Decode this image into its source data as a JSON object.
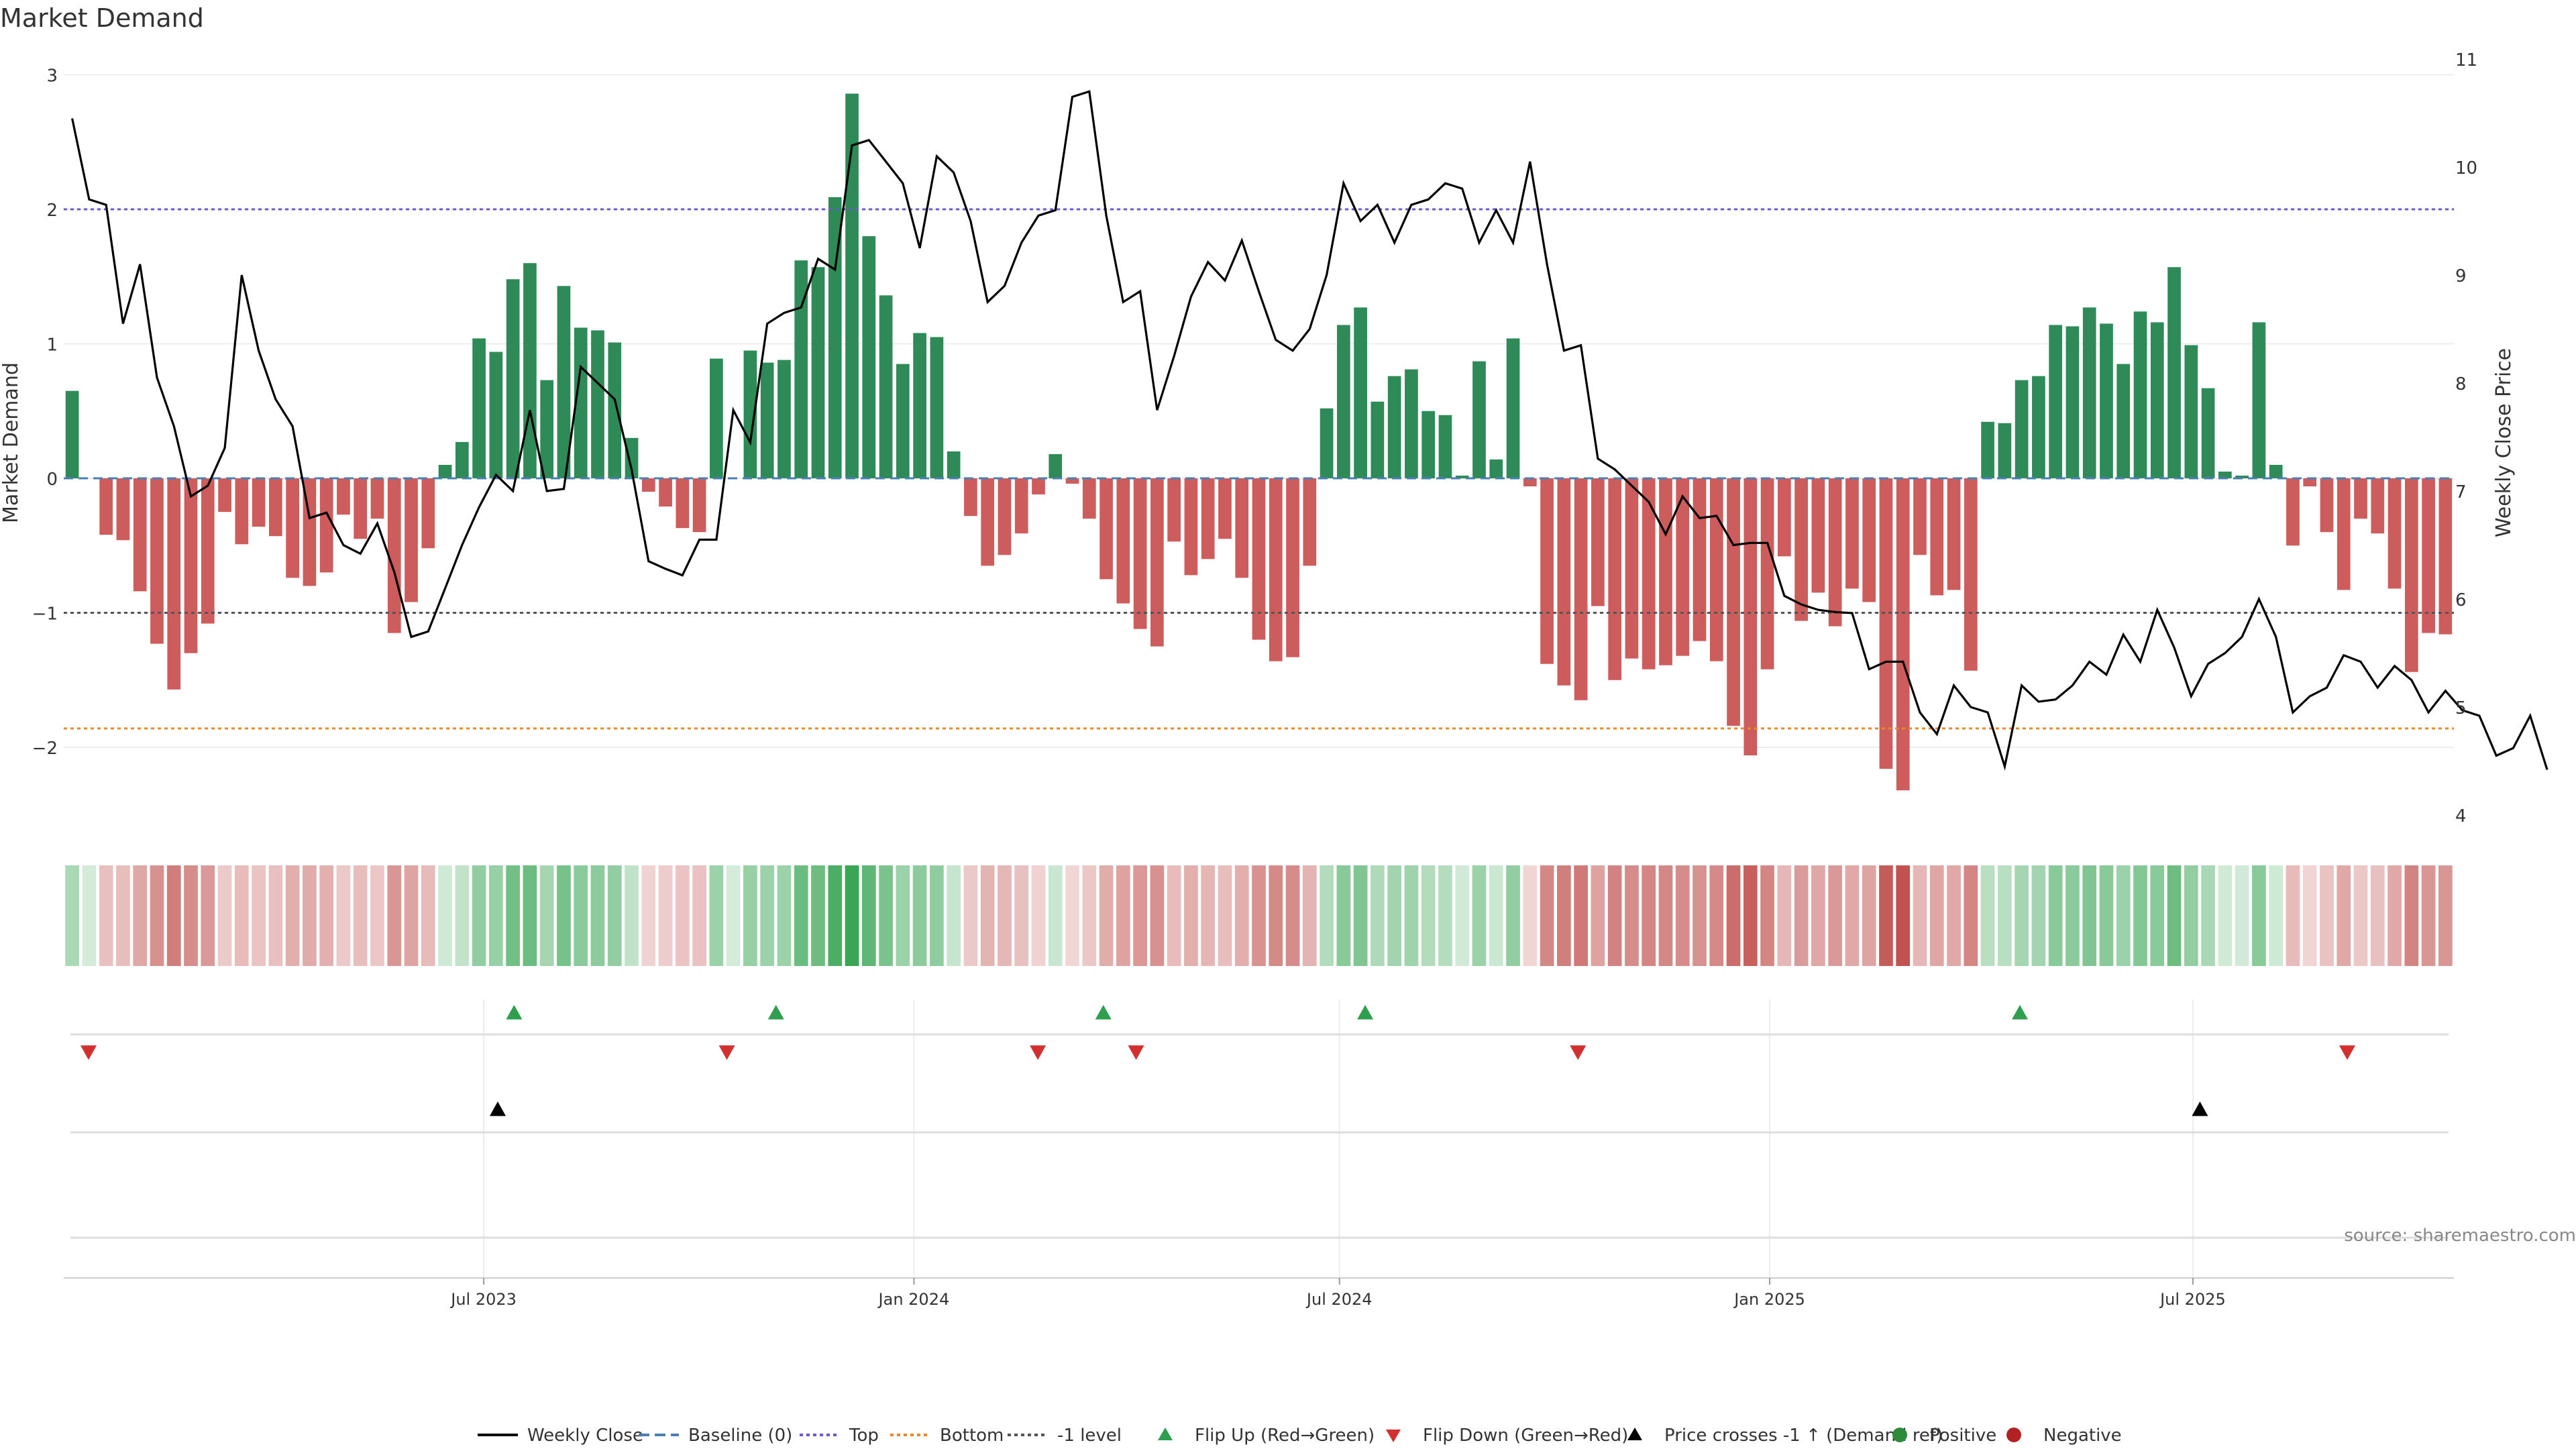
{
  "chart_data": {
    "type": "bar",
    "title": "Market Demand",
    "ylabel": "Market Demand",
    "y2label": "Weekly Close Price",
    "ylim": [
      -2.6,
      3.0
    ],
    "y2lim": [
      4.0,
      11.0
    ],
    "yticks": [
      3,
      2,
      1,
      0,
      -1,
      -2
    ],
    "ytick_labels": [
      "3",
      "2",
      "1",
      "0",
      "−1",
      "−2"
    ],
    "y2ticks": [
      11,
      10,
      9,
      8,
      7,
      6,
      5,
      4
    ],
    "y2tick_labels": [
      "11",
      "10",
      "9",
      "8",
      "7",
      "6",
      "5",
      "4"
    ],
    "x_start": "2023-01-06",
    "x_end": "2025-10-17",
    "xticks": [
      {
        "date": "2023-07-01",
        "label": "Jul 2023"
      },
      {
        "date": "2024-01-01",
        "label": "Jan 2024"
      },
      {
        "date": "2024-07-01",
        "label": "Jul 2024"
      },
      {
        "date": "2025-01-01",
        "label": "Jan 2025"
      },
      {
        "date": "2025-07-01",
        "label": "Jul 2025"
      }
    ],
    "levels": {
      "top": 2.0,
      "bottom": -1.86,
      "minus_one": -1.0,
      "baseline": 0
    },
    "demand": [
      0.65,
      0,
      -0.42,
      -0.46,
      -0.84,
      -1.23,
      -1.57,
      -1.3,
      -1.08,
      -0.25,
      -0.49,
      -0.36,
      -0.43,
      -0.74,
      -0.8,
      -0.7,
      -0.27,
      -0.45,
      -0.3,
      -1.15,
      -0.92,
      -0.52,
      0.1,
      0.27,
      1.04,
      0.94,
      1.48,
      1.6,
      0.73,
      1.43,
      1.12,
      1.1,
      1.01,
      0.3,
      -0.1,
      -0.21,
      -0.37,
      -0.4,
      0.89,
      0.0,
      0.95,
      0.86,
      0.88,
      1.62,
      1.57,
      2.09,
      2.86,
      1.8,
      1.36,
      0.85,
      1.08,
      1.05,
      0.2,
      -0.28,
      -0.65,
      -0.57,
      -0.41,
      -0.12,
      0.18,
      -0.04,
      -0.3,
      -0.75,
      -0.93,
      -1.12,
      -1.25,
      -0.47,
      -0.72,
      -0.6,
      -0.45,
      -0.74,
      -1.2,
      -1.36,
      -1.33,
      -0.65,
      0.52,
      1.14,
      1.27,
      0.57,
      0.76,
      0.81,
      0.5,
      0.47,
      0.02,
      0.87,
      0.14,
      1.04,
      -0.06,
      -1.38,
      -1.54,
      -1.65,
      -0.95,
      -1.5,
      -1.34,
      -1.42,
      -1.39,
      -1.32,
      -1.21,
      -1.36,
      -1.84,
      -2.06,
      -1.42,
      -0.58,
      -1.06,
      -0.85,
      -1.1,
      -0.82,
      -0.92,
      -2.16,
      -2.32,
      -0.57,
      -0.87,
      -0.83,
      -1.43,
      0.42,
      0.41,
      0.73,
      0.76,
      1.14,
      1.13,
      1.27,
      1.15,
      0.85,
      1.24,
      1.16,
      1.57,
      0.99,
      0.67,
      0.05,
      0.02,
      1.16,
      0.1,
      -0.5,
      -0.06,
      -0.4,
      -0.83,
      -0.3,
      -0.41,
      -0.82,
      -1.44,
      -1.15,
      -1.16
    ],
    "close": [
      10.45,
      9.7,
      9.65,
      8.55,
      9.1,
      8.05,
      7.6,
      6.95,
      7.05,
      7.4,
      9.0,
      8.3,
      7.85,
      7.6,
      6.75,
      6.8,
      6.5,
      6.42,
      6.7,
      6.25,
      5.65,
      5.7,
      6.1,
      6.5,
      6.85,
      7.15,
      7.0,
      7.75,
      7.0,
      7.02,
      8.15,
      8.0,
      7.85,
      7.2,
      6.35,
      6.28,
      6.22,
      6.55,
      6.55,
      7.75,
      7.45,
      8.55,
      8.65,
      8.7,
      9.15,
      9.05,
      10.2,
      10.25,
      10.05,
      9.85,
      9.25,
      10.1,
      9.95,
      9.5,
      8.75,
      8.9,
      9.3,
      9.55,
      9.6,
      10.65,
      10.7,
      9.55,
      8.75,
      8.85,
      7.75,
      8.25,
      8.8,
      9.12,
      8.95,
      9.32,
      8.85,
      8.4,
      8.3,
      8.5,
      9.0,
      9.85,
      9.5,
      9.65,
      9.3,
      9.65,
      9.7,
      9.85,
      9.8,
      9.3,
      9.6,
      9.3,
      10.05,
      9.1,
      8.3,
      8.35,
      7.3,
      7.2,
      7.05,
      6.9,
      6.6,
      6.95,
      6.75,
      6.77,
      6.5,
      6.52,
      6.52,
      6.03,
      5.95,
      5.9,
      5.88,
      5.87,
      5.35,
      5.42,
      5.42,
      4.95,
      4.75,
      5.2,
      5.0,
      4.95,
      4.45,
      5.2,
      5.05,
      5.07,
      5.2,
      5.42,
      5.3,
      5.67,
      5.42,
      5.9,
      5.55,
      5.1,
      5.4,
      5.5,
      5.65,
      6.0,
      5.65,
      4.95,
      5.1,
      5.18,
      5.48,
      5.42,
      5.18,
      5.38,
      5.25,
      4.95,
      5.15,
      4.97,
      4.92,
      4.55,
      4.62,
      4.92,
      4.42
    ],
    "flip_up": [
      "2023-07-14",
      "2023-11-03",
      "2024-03-22",
      "2024-07-12",
      "2025-04-18"
    ],
    "flip_down": [
      "2023-01-13",
      "2023-10-13",
      "2024-02-23",
      "2024-04-05",
      "2024-10-11",
      "2025-09-05"
    ],
    "price_cross": [
      "2023-07-07",
      "2025-07-04"
    ],
    "legend": [
      {
        "label": "Weekly Close",
        "kind": "solid",
        "color": "#000000"
      },
      {
        "label": "Baseline (0)",
        "kind": "dashed",
        "color": "#4a7fb5"
      },
      {
        "label": "Top",
        "kind": "dotted",
        "color": "#6a5acd"
      },
      {
        "label": "Bottom",
        "kind": "dotted",
        "color": "#e8892b"
      },
      {
        "label": "-1 level",
        "kind": "dotted",
        "color": "#555555"
      },
      {
        "label": "Flip Up (Red→Green)",
        "kind": "tri-up",
        "color": "#2e9e4f"
      },
      {
        "label": "Flip Down (Green→Red)",
        "kind": "tri-down",
        "color": "#d32f2f"
      },
      {
        "label": "Price crosses -1 ↑ (Demand ref)",
        "kind": "tri-up",
        "color": "#000000"
      },
      {
        "label": "Positive",
        "kind": "dot",
        "color": "#2e8b3a"
      },
      {
        "label": "Negative",
        "kind": "dot",
        "color": "#b22222"
      }
    ],
    "source": "source: sharemaestro.com",
    "colors": {
      "positive_bar": "#2e8b57",
      "negative_bar": "#cd5c5c",
      "close_line": "#000000",
      "heat_pos": "#3aa655",
      "heat_neg": "#c0504d"
    }
  }
}
